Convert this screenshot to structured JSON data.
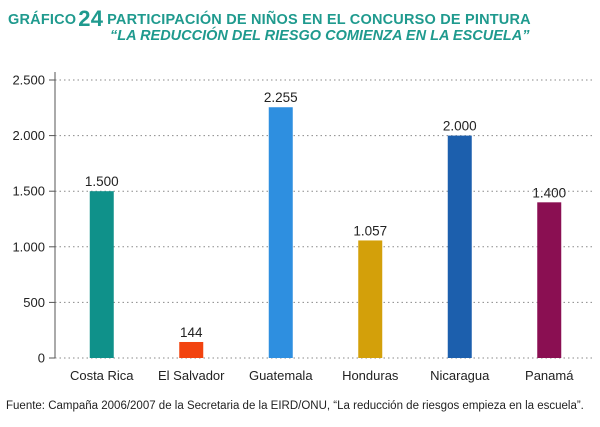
{
  "title": {
    "prefix": "GRÁFICO",
    "number": "24",
    "line1": "PARTICIPACIÓN DE NIÑOS EN EL CONCURSO DE PINTURA",
    "line2": "“LA REDUCCIÓN DEL RIESGO COMIENZA EN LA ESCUELA”"
  },
  "source": "Fuente: Campaña 2006/2007 de la Secretaria de la EIRD/ONU, “La reducción de riesgos empieza en la escuela”.",
  "chart_data": {
    "type": "bar",
    "categories": [
      "Costa Rica",
      "El Salvador",
      "Guatemala",
      "Honduras",
      "Nicaragua",
      "Panamá"
    ],
    "values": [
      1500,
      144,
      2255,
      1057,
      2000,
      1400
    ],
    "value_labels": [
      "1.500",
      "144",
      "2.255",
      "1.057",
      "2.000",
      "1.400"
    ],
    "colors": [
      "#0f918a",
      "#f2430f",
      "#2e8fe0",
      "#d3a00a",
      "#1c5fad",
      "#8a0f52"
    ],
    "yticks": [
      0,
      500,
      1000,
      1500,
      2000,
      2500
    ],
    "ytick_labels": [
      "0",
      "500",
      "1.000",
      "1.500",
      "2.000",
      "2.500"
    ],
    "ylim": [
      0,
      2500
    ],
    "grid": "dotted horizontal",
    "title": "PARTICIPACIÓN DE NIÑOS EN EL CONCURSO DE PINTURA “LA REDUCCIÓN DEL RIESGO COMIENZA EN LA ESCUELA”"
  }
}
